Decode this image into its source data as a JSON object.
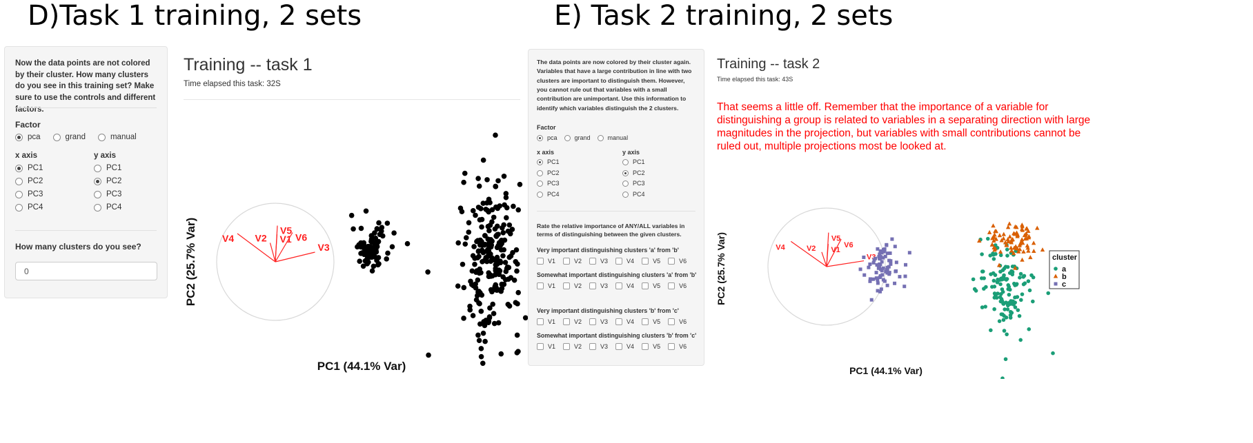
{
  "panel_d": {
    "caption": "D)Task 1 training, 2 sets",
    "sidebar": {
      "instructions": "Now the data points are not colored by their cluster. How many clusters do you see in this training set? Make sure to use the controls and different factors.",
      "factor_label": "Factor",
      "factor_options": [
        "pca",
        "grand",
        "manual"
      ],
      "factor_selected": "pca",
      "x_axis_label": "x axis",
      "y_axis_label": "y axis",
      "axis_options": [
        "PC1",
        "PC2",
        "PC3",
        "PC4"
      ],
      "x_selected": "PC1",
      "y_selected": "PC2",
      "question": "How many clusters do you see?",
      "answer_value": "0"
    },
    "main": {
      "title": "Training -- task 1",
      "elapsed": "Time elapsed this task: 32S"
    }
  },
  "panel_e": {
    "caption": "E) Task 2 training, 2 sets",
    "sidebar": {
      "instructions": "The data points are now colored by their cluster again. Variables that have a large contribution in line with two clusters are important to distinguish them. However, you cannot rule out that variables with a small contribution are unimportant. Use this information to identify which variables distinguish the 2 clusters.",
      "factor_label": "Factor",
      "factor_options": [
        "pca",
        "grand",
        "manual"
      ],
      "factor_selected": "pca",
      "x_axis_label": "x axis",
      "y_axis_label": "y axis",
      "axis_options": [
        "PC1",
        "PC2",
        "PC3",
        "PC4"
      ],
      "x_selected": "PC1",
      "y_selected": "PC2",
      "rate_prompt": "Rate the relative importance of ANY/ALL variables in terms of distinguishing between the given clusters.",
      "variables": [
        "V1",
        "V2",
        "V3",
        "V4",
        "V5",
        "V6"
      ],
      "questions": [
        "Very important distinguishing clusters 'a' from 'b'",
        "Somewhat important distinguishing clusters 'a' from 'b'",
        "Very important distinguishing clusters 'b' from 'c'",
        "Somewhat important distinguishing clusters 'b' from 'c'"
      ]
    },
    "main": {
      "title": "Training -- task 2",
      "elapsed": "Time elapsed this task: 43S",
      "feedback": "That seems a little off. Remember that the importance of a variable for distinguishing a group is related to variables in a separating direction with large magnitudes in the projection, but variables with small contributions cannot be ruled out, multiple projections most be looked at."
    }
  },
  "chart_data": [
    {
      "type": "scatter",
      "xlabel": "PC1 (44.1% Var)",
      "ylabel": "PC2 (25.7% Var)",
      "point_color": "#000000",
      "axes_labels": [
        "V1",
        "V2",
        "V3",
        "V4",
        "V5",
        "V6"
      ],
      "clusters": [
        {
          "center": [
            0.45,
            0.0
          ],
          "spread": [
            0.14,
            0.28
          ],
          "n": 80
        },
        {
          "center": [
            2.25,
            -0.25
          ],
          "spread": [
            0.22,
            1.0
          ],
          "n": 230
        }
      ],
      "outliers": [
        [
          1.3,
          -0.6
        ],
        [
          3.05,
          -2.2
        ]
      ]
    },
    {
      "type": "scatter",
      "xlabel": "PC1 (44.1% Var)",
      "ylabel": "PC2 (25.7% Var)",
      "legend_title": "cluster",
      "legend_position": "right",
      "axes_labels": [
        "V1",
        "V2",
        "V3",
        "V4",
        "V5",
        "V6"
      ],
      "series": [
        {
          "name": "a",
          "color": "#1b9e77",
          "shape": "circle",
          "center": [
            2.3,
            -0.55
          ],
          "spread": [
            0.2,
            0.55
          ],
          "n": 140
        },
        {
          "name": "b",
          "color": "#d95f02",
          "shape": "triangle",
          "center": [
            2.4,
            0.65
          ],
          "spread": [
            0.2,
            0.28
          ],
          "n": 80
        },
        {
          "name": "c",
          "color": "#7570b3",
          "shape": "square",
          "center": [
            0.5,
            0.05
          ],
          "spread": [
            0.14,
            0.33
          ],
          "n": 75
        }
      ],
      "outliers": [
        [
          3.0,
          -2.15
        ]
      ]
    }
  ]
}
